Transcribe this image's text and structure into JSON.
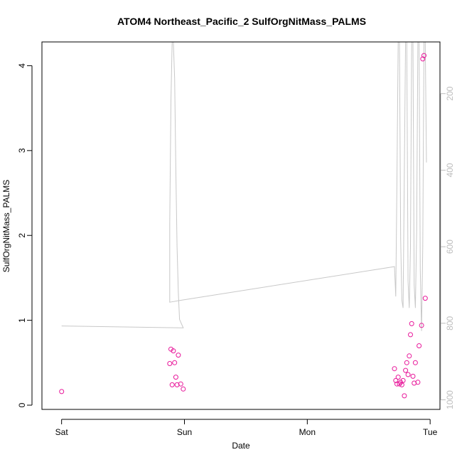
{
  "chart_data": {
    "type": "scatter",
    "title": "ATOM4 Northeast_Pacific_2 SulfOrgNitMass_PALMS",
    "xlabel": "Date",
    "ylabel": "SulfOrgNitMass_PALMS",
    "x_ticks": [
      {
        "label": "Sat",
        "value": 0
      },
      {
        "label": "Sun",
        "value": 1
      },
      {
        "label": "Mon",
        "value": 2
      },
      {
        "label": "Tue",
        "value": 3
      }
    ],
    "xlim": [
      -0.16,
      3.08
    ],
    "ylim": [
      -0.05,
      4.28
    ],
    "y_ticks": [
      0,
      1,
      2,
      3,
      4
    ],
    "y2_ticks": [
      200,
      400,
      600,
      800,
      1000
    ],
    "y2lim": [
      1025,
      65
    ],
    "colors": {
      "points": "#e8179a",
      "line": "#c8c8c8",
      "right_axis": "#bdbdbd"
    },
    "series": [
      {
        "type": "scatter",
        "points": [
          [
            0.0,
            0.16
          ],
          [
            0.88,
            0.49
          ],
          [
            0.89,
            0.66
          ],
          [
            0.9,
            0.24
          ],
          [
            0.91,
            0.64
          ],
          [
            0.92,
            0.5
          ],
          [
            0.93,
            0.33
          ],
          [
            0.94,
            0.24
          ],
          [
            0.95,
            0.59
          ],
          [
            0.97,
            0.25
          ],
          [
            0.99,
            0.19
          ],
          [
            2.71,
            0.43
          ],
          [
            2.72,
            0.29
          ],
          [
            2.73,
            0.25
          ],
          [
            2.74,
            0.33
          ],
          [
            2.75,
            0.25
          ],
          [
            2.76,
            0.27
          ],
          [
            2.77,
            0.24
          ],
          [
            2.78,
            0.29
          ],
          [
            2.79,
            0.11
          ],
          [
            2.8,
            0.41
          ],
          [
            2.81,
            0.5
          ],
          [
            2.82,
            0.36
          ],
          [
            2.83,
            0.58
          ],
          [
            2.84,
            0.83
          ],
          [
            2.85,
            0.96
          ],
          [
            2.86,
            0.34
          ],
          [
            2.87,
            0.26
          ],
          [
            2.88,
            0.5
          ],
          [
            2.9,
            0.27
          ],
          [
            2.91,
            0.7
          ],
          [
            2.93,
            0.94
          ],
          [
            2.94,
            4.08
          ],
          [
            2.95,
            4.12
          ],
          [
            2.96,
            1.26
          ]
        ]
      },
      {
        "type": "line",
        "axis": "right",
        "points": [
          [
            0.0,
            807
          ],
          [
            0.99,
            812
          ],
          [
            0.96,
            790
          ],
          [
            0.95,
            720
          ],
          [
            0.94,
            600
          ],
          [
            0.93,
            400
          ],
          [
            0.92,
            160
          ],
          [
            0.91,
            65
          ],
          [
            0.9,
            65
          ],
          [
            0.89,
            220
          ],
          [
            0.88,
            540
          ],
          [
            0.88,
            745
          ],
          [
            0.97,
            740
          ],
          [
            2.71,
            652
          ],
          [
            2.72,
            730
          ],
          [
            2.73,
            420
          ],
          [
            2.74,
            65
          ],
          [
            2.75,
            65
          ],
          [
            2.76,
            580
          ],
          [
            2.77,
            740
          ],
          [
            2.78,
            760
          ],
          [
            2.79,
            400
          ],
          [
            2.8,
            65
          ],
          [
            2.81,
            65
          ],
          [
            2.82,
            690
          ],
          [
            2.83,
            760
          ],
          [
            2.84,
            600
          ],
          [
            2.85,
            65
          ],
          [
            2.86,
            65
          ],
          [
            2.87,
            700
          ],
          [
            2.88,
            760
          ],
          [
            2.89,
            560
          ],
          [
            2.9,
            65
          ],
          [
            2.91,
            65
          ],
          [
            2.92,
            660
          ],
          [
            2.93,
            820
          ],
          [
            2.94,
            600
          ],
          [
            2.95,
            65
          ],
          [
            2.96,
            65
          ],
          [
            2.97,
            380
          ]
        ]
      }
    ]
  }
}
